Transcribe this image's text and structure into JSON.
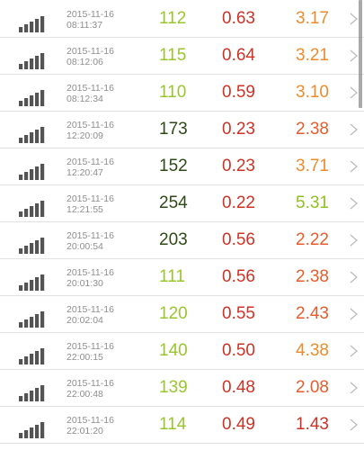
{
  "colors": {
    "signal": "#545454",
    "date": "#8e8e8e",
    "chevron": "#b9b9b9",
    "divider": "#e2e2e2",
    "light_green": "#9ac62d",
    "dark_green": "#2f4a17",
    "red": "#d03225",
    "orange": "#ee8b2c",
    "red_orange": "#e85c2c",
    "green": "#8fbf23"
  },
  "icons": {
    "signal": "signal-strength-icon",
    "chevron": "chevron-right-icon"
  },
  "rows": [
    {
      "date": "2015-11-16",
      "time": "08:11:37",
      "v1": "112",
      "v2": "0.63",
      "v3": "3.17",
      "c1": "light_green",
      "c2": "red",
      "c3": "orange"
    },
    {
      "date": "2015-11-16",
      "time": "08:12:06",
      "v1": "115",
      "v2": "0.64",
      "v3": "3.21",
      "c1": "light_green",
      "c2": "red",
      "c3": "orange"
    },
    {
      "date": "2015-11-16",
      "time": "08:12:34",
      "v1": "110",
      "v2": "0.59",
      "v3": "3.10",
      "c1": "light_green",
      "c2": "red",
      "c3": "orange"
    },
    {
      "date": "2015-11-16",
      "time": "12:20:09",
      "v1": "173",
      "v2": "0.23",
      "v3": "2.38",
      "c1": "dark_green",
      "c2": "red",
      "c3": "red_orange"
    },
    {
      "date": "2015-11-16",
      "time": "12:20:47",
      "v1": "152",
      "v2": "0.23",
      "v3": "3.71",
      "c1": "dark_green",
      "c2": "red",
      "c3": "orange"
    },
    {
      "date": "2015-11-16",
      "time": "12:21:55",
      "v1": "254",
      "v2": "0.22",
      "v3": "5.31",
      "c1": "dark_green",
      "c2": "red",
      "c3": "green"
    },
    {
      "date": "2015-11-16",
      "time": "20:00:54",
      "v1": "203",
      "v2": "0.56",
      "v3": "2.22",
      "c1": "dark_green",
      "c2": "red",
      "c3": "red_orange"
    },
    {
      "date": "2015-11-16",
      "time": "20:01:30",
      "v1": "111",
      "v2": "0.56",
      "v3": "2.38",
      "c1": "light_green",
      "c2": "red",
      "c3": "red_orange"
    },
    {
      "date": "2015-11-16",
      "time": "20:02:04",
      "v1": "120",
      "v2": "0.55",
      "v3": "2.43",
      "c1": "light_green",
      "c2": "red",
      "c3": "red_orange"
    },
    {
      "date": "2015-11-16",
      "time": "22:00:15",
      "v1": "140",
      "v2": "0.50",
      "v3": "4.38",
      "c1": "light_green",
      "c2": "red",
      "c3": "orange"
    },
    {
      "date": "2015-11-16",
      "time": "22:00:48",
      "v1": "139",
      "v2": "0.48",
      "v3": "2.08",
      "c1": "light_green",
      "c2": "red",
      "c3": "red_orange"
    },
    {
      "date": "2015-11-16",
      "time": "22:01:20",
      "v1": "114",
      "v2": "0.49",
      "v3": "1.43",
      "c1": "light_green",
      "c2": "red",
      "c3": "red"
    }
  ]
}
